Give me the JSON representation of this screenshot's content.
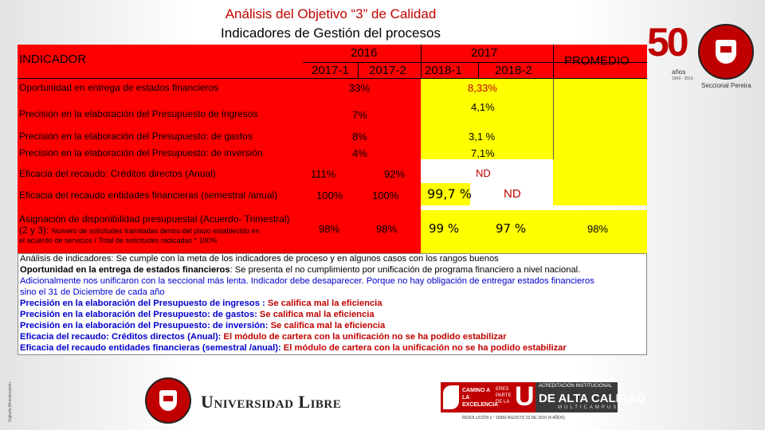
{
  "title": {
    "line1": "Análisis del Objetivo “3” de Calidad",
    "line2": "Indicadores de Gestión del procesos"
  },
  "header": {
    "indicador": "INDICADOR",
    "year_2016": "2016",
    "year_2017": "2017",
    "p2017_1": "2017-1",
    "p2017_2": "2017-2",
    "p2018_1": "2018-1",
    "p2018_2": "2018-2",
    "promedio": "PROMEDIO"
  },
  "rows": [
    {
      "label": "Oportunidad en entrega de estados financieros",
      "v2016": "33%",
      "v2017": "8,33%"
    },
    {
      "label": "Precisión en la elaboración del Presupuesto de ingresos",
      "v2016": "7%",
      "v2017": "4,1%"
    },
    {
      "label": "Precisión en la elaboración del Presupuesto:  de gastos",
      "v2016": "8%",
      "v2017": "3,1 %"
    },
    {
      "label": "Precisión en la elaboración del Presupuesto: de inversión",
      "v2016": "4%",
      "v2017": "7,1%"
    },
    {
      "label": "Eficacia del recaudo: Créditos directos (Anual)",
      "v2017_1": "111%",
      "v2017_2": "92%",
      "v2017": "ND"
    },
    {
      "label": "Eficacia del recaudo entidades financieras (semestral /anual)",
      "v2017_1": "100%",
      "v2017_2": "100%",
      "v2018_1": "99,7 %",
      "v2018_2": "ND"
    },
    {
      "label_a": "Asignación de disponibilidad presupuestal (Acuerdo- Trimestral)",
      "label_b": "(2 y 3):",
      "label_c": "Número de solicitudes tramitadas dentro del plazo establecido en",
      "label_d": "el acuerdo de servicios / Total de solicitudes radicadas * 100%",
      "v2017_1": "98%",
      "v2017_2": "98%",
      "v2018_1": "99 %",
      "v2018_2": "97 %",
      "promedio": "98%"
    }
  ],
  "notes": {
    "l1": "Análisis de indicadores: Se cumple con la meta de los indicadores de proceso y en algunos casos con los rangos buenos",
    "l2a": "Oportunidad en la entrega de estados financieros",
    "l2b": ": Se presenta el no cumplimiento por unificación de  programa financiero a nivel nacional.",
    "l3": "Adicionalmente nos unificaron con la seccional más lenta. Indicador debe desaparecer. Porque no hay obligación de entregar estados financieros",
    "l4": "sino el 31 de Diciembre de cada año",
    "l5a": "Precisión en la elaboración del Presupuesto de ingresos : ",
    "l5b": "Se califica mal la eficiencia",
    "l6a": "Precisión en la elaboración del Presupuesto:  de gastos:  ",
    "l6b": "Se califica mal la eficiencia",
    "l7a": "Precisión en la elaboración del Presupuesto: de inversión: ",
    "l7b": "Se califica mal la eficiencia",
    "l8a": "Eficacia del recaudo: Créditos directos (Anual): ",
    "l8b": "El módulo de cartera con la unificación no se ha podido estabilizar",
    "l9a": "Eficacia del recaudo entidades financieras (semestral /anual): ",
    "l9b": "El módulo de cartera con la unificación no se ha podido estabilizar"
  },
  "logos": {
    "fifty": "50",
    "anos": "años",
    "years": "1969 - 2019",
    "seccional": "Seccional Pereira",
    "universidad_libre": "Universidad Libre",
    "camino": "CAMINO A LA EXCELENCIA",
    "eres_parte": "ERES PARTE DE LA",
    "u": "U",
    "acreditacion": "ACREDITACIÓN INSTITUCIONAL",
    "alta_calidad": "DE ALTA CALIDAD",
    "multicampus": "MULTICAMPUS",
    "resolucion": "RESOLUCIÓN n.° 16892 AGOSTO 22 DE 2016 (4 AÑOS)",
    "vigilada": "Vigilada Mineducación"
  },
  "colors": {
    "red": "#ff0000",
    "yellow": "#ffff00",
    "title_red": "#c00000",
    "note_red": "#c00000",
    "note_blue": "#0000cc"
  }
}
